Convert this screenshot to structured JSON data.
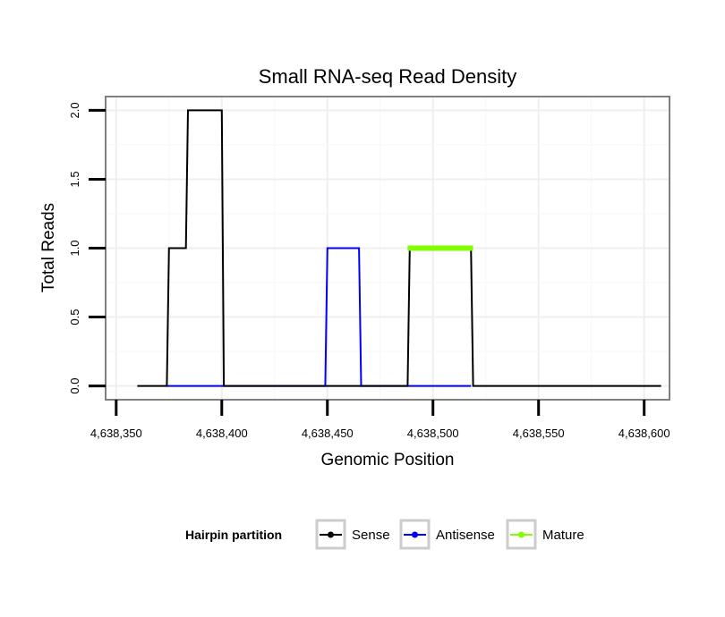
{
  "chart_data": {
    "type": "line",
    "title": "Small RNA-seq Read Density",
    "xlabel": "Genomic Position",
    "ylabel": "Total Reads",
    "xlim": [
      4638345,
      4638612
    ],
    "ylim": [
      -0.1,
      2.1
    ],
    "x_ticks": [
      4638350,
      4638400,
      4638450,
      4638500,
      4638550,
      4638600
    ],
    "x_tick_labels": [
      "4,638,350",
      "4,638,400",
      "4,638,450",
      "4,638,500",
      "4,638,550",
      "4,638,600"
    ],
    "y_ticks": [
      0,
      0.5,
      1,
      1.5,
      2
    ],
    "y_tick_labels": [
      "0.0",
      "0.5",
      "1.0",
      "1.5",
      "2.0"
    ],
    "grid": true,
    "legend": {
      "title": "Hairpin partition",
      "position": "bottom",
      "entries": [
        {
          "label": "Sense",
          "color": "#000000"
        },
        {
          "label": "Antisense",
          "color": "#0000ff"
        },
        {
          "label": "Mature",
          "color": "#7fff00"
        }
      ]
    },
    "series": [
      {
        "name": "Sense",
        "color": "#000000",
        "x": [
          4638360,
          4638374,
          4638375,
          4638383,
          4638384,
          4638400,
          4638401,
          4638488,
          4638489,
          4638518,
          4638519,
          4638608
        ],
        "y": [
          0,
          0,
          1,
          1,
          2,
          2,
          0,
          0,
          1,
          1,
          0,
          0
        ]
      },
      {
        "name": "Antisense",
        "color": "#0000ff",
        "x": [
          4638374,
          4638449,
          4638450,
          4638465,
          4638466,
          4638488,
          4638518
        ],
        "y": [
          0,
          0,
          1,
          1,
          0,
          0,
          0
        ]
      },
      {
        "name": "Mature",
        "color": "#7fff00",
        "x": [
          4638488,
          4638519
        ],
        "y": [
          1,
          1
        ]
      }
    ]
  }
}
